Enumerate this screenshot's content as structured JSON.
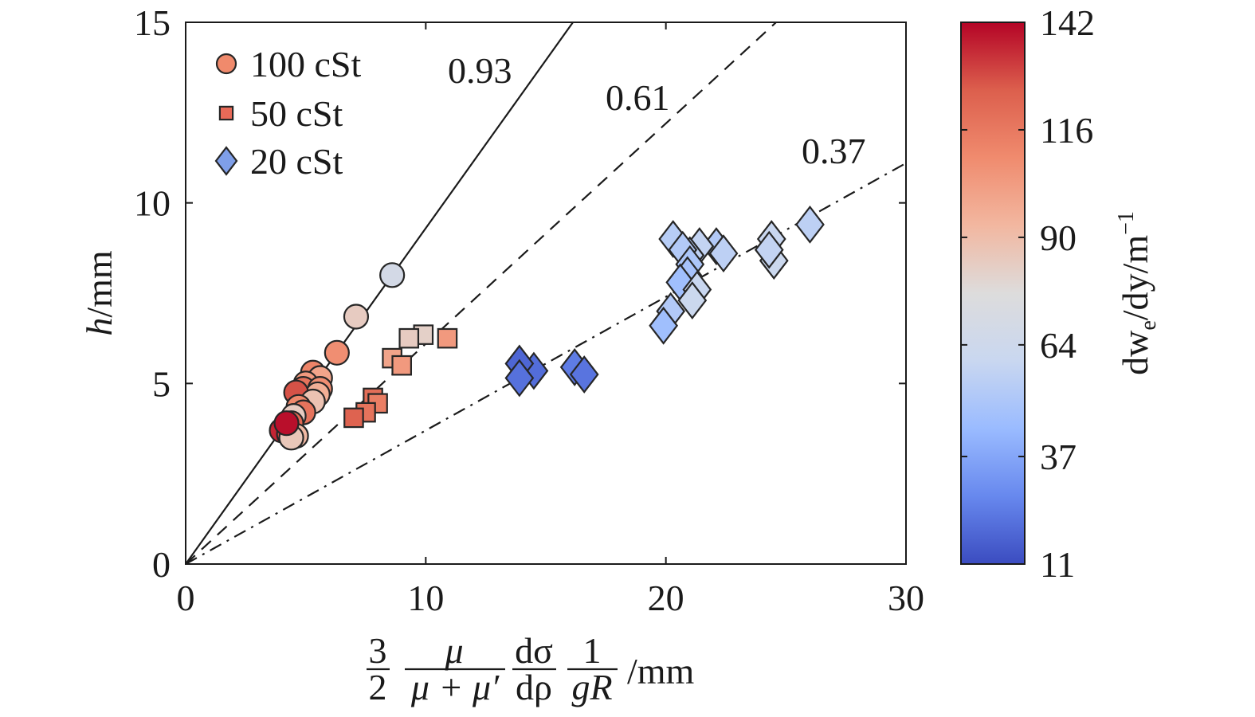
{
  "chart_data": {
    "type": "scatter",
    "xlim": [
      0,
      30
    ],
    "ylim": [
      0,
      15
    ],
    "x_ticks": [
      0,
      10,
      20,
      30
    ],
    "y_ticks": [
      0,
      5,
      10,
      15
    ],
    "ylabel": {
      "var": "h",
      "unit": "/mm"
    },
    "xlabel": {
      "f1_num": "3",
      "f1_den": "2",
      "f2_num": "μ",
      "f2_den": "μ + μ′",
      "f3_num": "dσ",
      "f3_den": "dρ",
      "f4_num": "1",
      "f4_den": "gR",
      "unit": "/mm"
    },
    "legend_position": "top-left",
    "grid": false,
    "colorbar": {
      "label_prefix": "dw",
      "label_sub": "e",
      "label_mid": "/dy/m",
      "label_sup": "−1",
      "min": 11,
      "max": 142,
      "ticks": [
        11,
        37,
        64,
        90,
        116,
        142
      ],
      "colors": [
        "#3b4cc0",
        "#6788ee",
        "#9abbff",
        "#c9d7f0",
        "#dddcdc",
        "#f2b7a0",
        "#f08b6e",
        "#dc5f4d",
        "#b40426"
      ]
    },
    "fit_lines": [
      {
        "slope": 0.93,
        "label": "0.93",
        "style": "solid"
      },
      {
        "slope": 0.61,
        "label": "0.61",
        "style": "dashed"
      },
      {
        "slope": 0.37,
        "label": "0.37",
        "style": "dashdot"
      }
    ],
    "series": [
      {
        "name": "100 cSt",
        "marker": "circle",
        "legend_color": "#f08a6c",
        "points": [
          [
            8.6,
            8.0,
            68
          ],
          [
            7.1,
            6.85,
            84
          ],
          [
            6.3,
            5.85,
            108
          ],
          [
            5.3,
            5.3,
            112
          ],
          [
            5.6,
            5.15,
            100
          ],
          [
            5.0,
            5.0,
            104
          ],
          [
            4.9,
            4.85,
            118
          ],
          [
            5.6,
            4.85,
            108
          ],
          [
            5.5,
            4.7,
            96
          ],
          [
            4.6,
            4.75,
            128
          ],
          [
            5.3,
            4.5,
            88
          ],
          [
            4.7,
            4.35,
            110
          ],
          [
            4.9,
            4.2,
            118
          ],
          [
            4.5,
            4.1,
            84
          ],
          [
            4.4,
            3.9,
            122
          ],
          [
            4.2,
            3.75,
            88
          ],
          [
            4.0,
            3.7,
            136
          ],
          [
            4.3,
            3.6,
            130
          ],
          [
            4.6,
            3.55,
            92
          ],
          [
            4.4,
            3.5,
            86
          ],
          [
            4.2,
            3.9,
            140
          ]
        ]
      },
      {
        "name": "50 cSt",
        "marker": "square",
        "legend_color": "#e86a58",
        "points": [
          [
            10.9,
            6.25,
            104
          ],
          [
            9.9,
            6.35,
            82
          ],
          [
            9.3,
            6.25,
            84
          ],
          [
            8.6,
            5.7,
            100
          ],
          [
            9.0,
            5.5,
            104
          ],
          [
            7.8,
            4.6,
            120
          ],
          [
            8.0,
            4.45,
            114
          ],
          [
            7.5,
            4.2,
            118
          ],
          [
            7.0,
            4.05,
            124
          ]
        ]
      },
      {
        "name": "20 cSt",
        "marker": "diamond",
        "legend_color": "#7f9fe8",
        "points": [
          [
            26.0,
            9.4,
            56
          ],
          [
            24.4,
            9.0,
            60
          ],
          [
            24.5,
            8.4,
            62
          ],
          [
            24.3,
            8.7,
            58
          ],
          [
            22.1,
            8.8,
            52
          ],
          [
            22.4,
            8.6,
            56
          ],
          [
            21.4,
            8.8,
            58
          ],
          [
            21.0,
            8.55,
            56
          ],
          [
            20.3,
            9.0,
            54
          ],
          [
            20.7,
            8.7,
            52
          ],
          [
            21.0,
            8.3,
            50
          ],
          [
            20.9,
            8.0,
            48
          ],
          [
            20.6,
            7.8,
            46
          ],
          [
            21.3,
            7.6,
            60
          ],
          [
            21.1,
            7.3,
            62
          ],
          [
            20.2,
            7.0,
            52
          ],
          [
            19.9,
            6.6,
            46
          ],
          [
            16.2,
            5.45,
            24
          ],
          [
            16.6,
            5.25,
            22
          ],
          [
            14.5,
            5.35,
            20
          ],
          [
            13.9,
            5.55,
            18
          ],
          [
            13.9,
            5.15,
            21
          ]
        ]
      }
    ]
  }
}
